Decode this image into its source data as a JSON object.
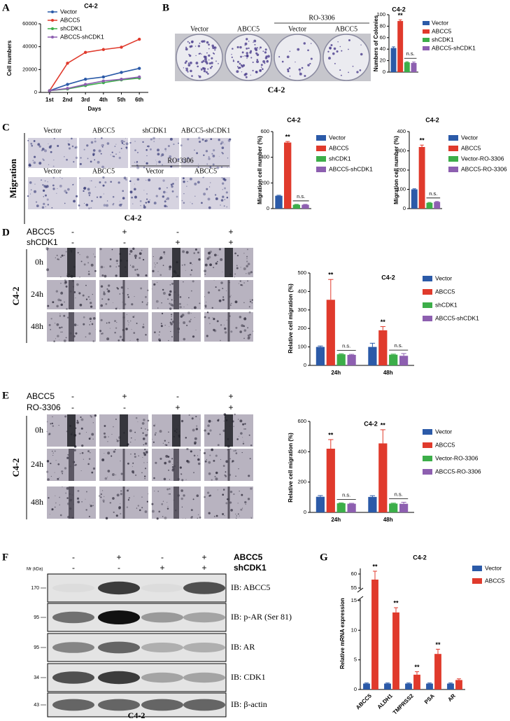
{
  "panel_labels": [
    "A",
    "B",
    "C",
    "D",
    "E",
    "F",
    "G"
  ],
  "panel_b": {
    "columns": [
      "Vector",
      "ABCC5",
      "Vector",
      "ABCC5"
    ],
    "treatment": "RO-3306",
    "caption": "C4-2"
  },
  "panel_c": {
    "row_label": "Migration",
    "top_columns": [
      "Vector",
      "ABCC5",
      "shCDK1",
      "ABCC5-shCDK1"
    ],
    "bottom_columns": [
      "Vector",
      "ABCC5",
      "Vector",
      "ABCC5"
    ],
    "treatment": "RO-3306",
    "caption": "C4-2"
  },
  "panel_d": {
    "factors": [
      {
        "name": "ABCC5",
        "signs": [
          "-",
          "+",
          "-",
          "+"
        ]
      },
      {
        "name": "shCDK1",
        "signs": [
          "-",
          "-",
          "+",
          "+"
        ]
      }
    ],
    "times": [
      "0h",
      "24h",
      "48h"
    ],
    "cell_line": "C4-2"
  },
  "panel_e": {
    "factors": [
      {
        "name": "ABCC5",
        "signs": [
          "-",
          "+",
          "-",
          "+"
        ]
      },
      {
        "name": "RO-3306",
        "signs": [
          "-",
          "-",
          "+",
          "+"
        ]
      }
    ],
    "times": [
      "0h",
      "24h",
      "48h"
    ],
    "cell_line": "C4-2"
  },
  "panel_f": {
    "factors": [
      {
        "name": "ABCC5",
        "signs": [
          "-",
          "+",
          "-",
          "+"
        ]
      },
      {
        "name": "shCDK1",
        "signs": [
          "-",
          "-",
          "+",
          "+"
        ]
      }
    ],
    "mr_label": "Mr (kDa)",
    "blots": [
      {
        "mw": "170",
        "label": "IB: ABCC5"
      },
      {
        "mw": "95",
        "label": "IB: p-AR (Ser 81)"
      },
      {
        "mw": "95",
        "label": "IB: AR"
      },
      {
        "mw": "34",
        "label": "IB: CDK1"
      },
      {
        "mw": "43",
        "label": "IB: β-actin"
      }
    ],
    "caption": "C4-2"
  },
  "chart_data": [
    {
      "type": "line",
      "title": "C4-2",
      "categories": [
        "1st",
        "2nd",
        "3rd",
        "4th",
        "5th",
        "6th"
      ],
      "x_label": "Days",
      "y_label": "Cell numbers",
      "ylim": [
        0,
        60000
      ],
      "yticks": [
        0,
        20000,
        40000,
        60000
      ],
      "series": [
        {
          "name": "Vector",
          "color": "#2b5aa8",
          "values": [
            1500,
            7000,
            11500,
            13500,
            17500,
            21000
          ]
        },
        {
          "name": "ABCC5",
          "color": "#e03a2c",
          "values": [
            1500,
            25500,
            35000,
            37500,
            39500,
            46500
          ]
        },
        {
          "name": "shCDK1",
          "color": "#3cae49",
          "values": [
            1500,
            3000,
            6000,
            8500,
            11000,
            12500
          ]
        },
        {
          "name": "ABCC5-shCDK1",
          "color": "#8d5fb0",
          "values": [
            1500,
            3500,
            7000,
            10000,
            11500,
            13500
          ]
        }
      ]
    },
    {
      "type": "bar",
      "title": "C4-2",
      "y_label": "Numbers of Colonies",
      "ylim": [
        0,
        100
      ],
      "yticks": [
        0,
        20,
        40,
        60,
        80,
        100
      ],
      "series": [
        {
          "name": "Vector",
          "color": "#2b5aa8",
          "values": [
            42
          ],
          "errors": [
            2
          ]
        },
        {
          "name": "ABCC5",
          "color": "#e03a2c",
          "values": [
            89
          ],
          "errors": [
            2
          ]
        },
        {
          "name": "shCDK1",
          "color": "#3cae49",
          "values": [
            17
          ],
          "errors": [
            1
          ]
        },
        {
          "name": "ABCC5-shCDK1",
          "color": "#8d5fb0",
          "values": [
            16
          ],
          "errors": [
            1.5
          ]
        }
      ],
      "annotations": [
        "**",
        "n.s."
      ]
    },
    {
      "type": "bar",
      "title": "C4-2",
      "y_label": "Migration cell number (%)",
      "ylim": [
        0,
        600
      ],
      "yticks": [
        0,
        200,
        400,
        600
      ],
      "series": [
        {
          "name": "Vector",
          "color": "#2b5aa8",
          "values": [
            100
          ],
          "errors": [
            4
          ]
        },
        {
          "name": "ABCC5",
          "color": "#e03a2c",
          "values": [
            515
          ],
          "errors": [
            8
          ]
        },
        {
          "name": "shCDK1",
          "color": "#3cae49",
          "values": [
            30
          ],
          "errors": [
            3
          ]
        },
        {
          "name": "ABCC5-shCDK1",
          "color": "#8d5fb0",
          "values": [
            30
          ],
          "errors": [
            3
          ]
        }
      ],
      "annotations": [
        "**",
        "n.s."
      ]
    },
    {
      "type": "bar",
      "title": "C4-2",
      "y_label": "Migration cell number (%)",
      "ylim": [
        0,
        400
      ],
      "yticks": [
        0,
        100,
        200,
        300,
        400
      ],
      "series": [
        {
          "name": "Vector",
          "color": "#2b5aa8",
          "values": [
            100
          ],
          "errors": [
            3
          ]
        },
        {
          "name": "ABCC5",
          "color": "#e03a2c",
          "values": [
            320
          ],
          "errors": [
            10
          ]
        },
        {
          "name": "Vector-RO-3306",
          "color": "#3cae49",
          "values": [
            30
          ],
          "errors": [
            2
          ]
        },
        {
          "name": "ABCC5-RO-3306",
          "color": "#8d5fb0",
          "values": [
            35
          ],
          "errors": [
            2
          ]
        }
      ],
      "annotations": [
        "**",
        "n.s."
      ]
    },
    {
      "type": "bar",
      "title": "C4-2",
      "categories": [
        "24h",
        "48h"
      ],
      "y_label": "Relative cell migration (%)",
      "ylim": [
        0,
        500
      ],
      "yticks": [
        0,
        100,
        200,
        300,
        400,
        500
      ],
      "series": [
        {
          "name": "Vector",
          "color": "#2b5aa8",
          "values": [
            100,
            100
          ],
          "errors": [
            5,
            20
          ]
        },
        {
          "name": "ABCC5",
          "color": "#e03a2c",
          "values": [
            355,
            190
          ],
          "errors": [
            110,
            20
          ]
        },
        {
          "name": "shCDK1",
          "color": "#3cae49",
          "values": [
            60,
            58
          ],
          "errors": [
            3,
            3
          ]
        },
        {
          "name": "ABCC5-shCDK1",
          "color": "#8d5fb0",
          "values": [
            57,
            52
          ],
          "errors": [
            3,
            12
          ]
        }
      ],
      "annotations": [
        "**",
        "n.s.",
        "**",
        "n.s."
      ]
    },
    {
      "type": "bar",
      "title": "C4-2",
      "categories": [
        "24h",
        "48h"
      ],
      "y_label": "Relative cell migration (%)",
      "ylim": [
        0,
        600
      ],
      "yticks": [
        0,
        200,
        400,
        600
      ],
      "series": [
        {
          "name": "Vector",
          "color": "#2b5aa8",
          "values": [
            103,
            102
          ],
          "errors": [
            8,
            8
          ]
        },
        {
          "name": "ABCC5",
          "color": "#e03a2c",
          "values": [
            420,
            455
          ],
          "errors": [
            60,
            90
          ]
        },
        {
          "name": "Vector-RO-3306",
          "color": "#3cae49",
          "values": [
            60,
            58
          ],
          "errors": [
            3,
            3
          ]
        },
        {
          "name": "ABCC5-RO-3306",
          "color": "#8d5fb0",
          "values": [
            57,
            57
          ],
          "errors": [
            3,
            10
          ]
        }
      ],
      "annotations": [
        "**",
        "n.s.",
        "**",
        "n.s."
      ]
    },
    {
      "type": "bar",
      "title": "C4-2",
      "categories": [
        "ABCC5",
        "ALDH1",
        "TMPRSS2",
        "PSA",
        "AR"
      ],
      "y_label": "Relative mRNA expression",
      "ylim": [
        0,
        62
      ],
      "yticks": [
        0,
        5,
        10,
        15,
        55,
        60
      ],
      "axis_break": [
        15,
        55
      ],
      "series": [
        {
          "name": "Vector",
          "color": "#2b5aa8",
          "values": [
            1,
            1,
            1,
            1,
            1
          ],
          "errors": [
            0.1,
            0.1,
            0.1,
            0.1,
            0.1
          ]
        },
        {
          "name": "ABCC5",
          "color": "#e03a2c",
          "values": [
            58,
            13,
            2.5,
            6,
            1.6
          ],
          "errors": [
            3,
            0.8,
            0.5,
            0.8,
            0.2
          ]
        }
      ],
      "annotations": [
        "**",
        "**",
        "**",
        "**"
      ]
    }
  ]
}
